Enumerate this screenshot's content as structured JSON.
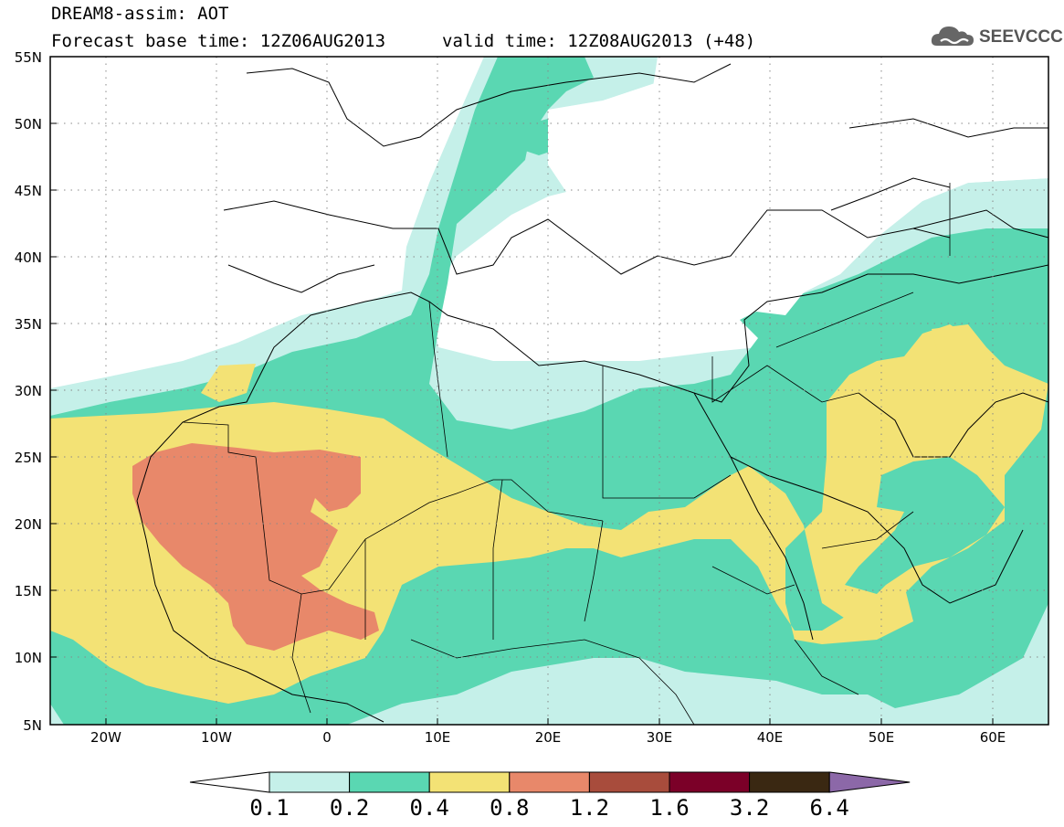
{
  "header": {
    "line1": "DREAM8-assim: AOT",
    "line2_base": "Forecast base time: 12Z06AUG2013",
    "line2_valid": "valid time: 12Z08AUG2013 (+48)"
  },
  "logo": {
    "text": "SEEVCCC",
    "icon": "cloud-logo-icon"
  },
  "map": {
    "lat_labels": [
      "55N",
      "50N",
      "45N",
      "40N",
      "35N",
      "30N",
      "25N",
      "20N",
      "15N",
      "10N",
      "5N"
    ],
    "lon_labels": [
      "20W",
      "10W",
      "0",
      "10E",
      "20E",
      "30E",
      "40E",
      "50E",
      "60E"
    ],
    "lat_range": [
      5,
      55
    ],
    "lon_range": [
      -25,
      65
    ],
    "grid": "dotted",
    "field": "AOT"
  },
  "legend": {
    "levels": [
      "0.1",
      "0.2",
      "0.4",
      "0.8",
      "1.2",
      "1.6",
      "3.2",
      "6.4"
    ],
    "colors": [
      "#ffffff",
      "#c5f0e9",
      "#5ad7b2",
      "#f3e275",
      "#e8886a",
      "#a84c3c",
      "#7b0028",
      "#3a2812",
      "#8c68a8"
    ]
  }
}
